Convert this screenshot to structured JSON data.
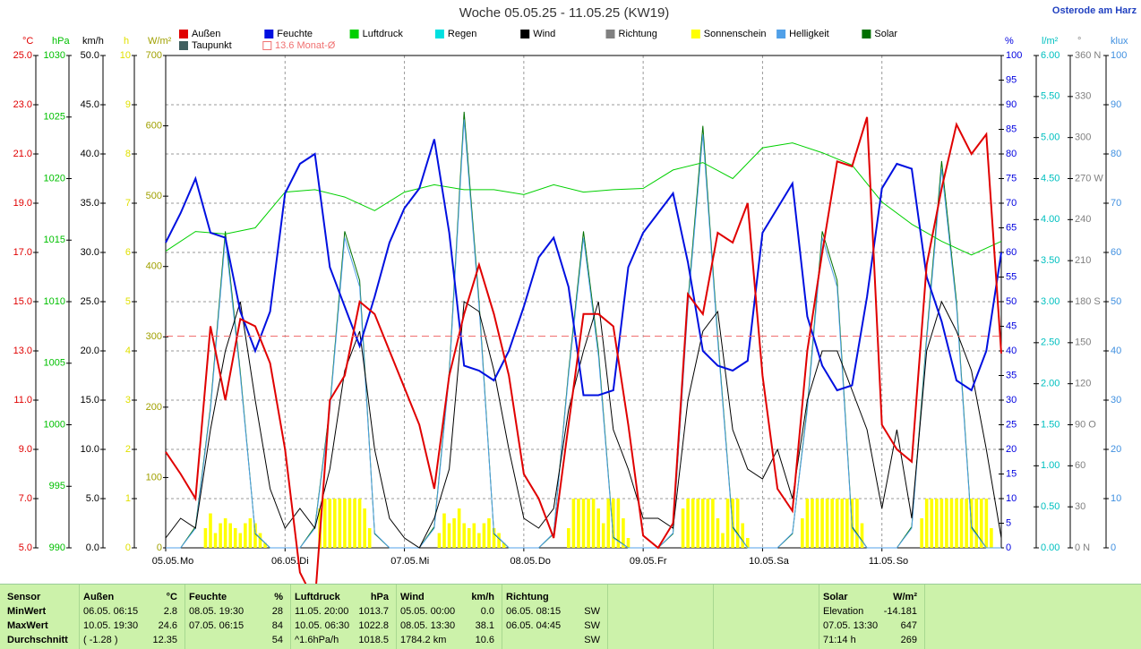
{
  "chart_data": {
    "type": "line",
    "title": "Woche 05.05.25 - 11.05.25 (KW19)",
    "location": "Osterode am Harz",
    "xlim": [
      0,
      168
    ],
    "xticks": [
      {
        "value": 0,
        "label": "05.05."
      },
      {
        "value": 24,
        "label": "06.05."
      },
      {
        "value": 48,
        "label": "07.05."
      },
      {
        "value": 72,
        "label": "08.05."
      },
      {
        "value": 96,
        "label": "09.05."
      },
      {
        "value": 120,
        "label": "10.05."
      },
      {
        "value": 144,
        "label": "11.05."
      }
    ],
    "weekdays": [
      "Mo",
      "Di",
      "Mi",
      "Do",
      "Fr",
      "Sa",
      "So"
    ],
    "axes": [
      {
        "unit": "°C",
        "side": "left",
        "color": "#e00000",
        "grid": true,
        "lim": [
          5,
          25
        ],
        "ticks": [
          {
            "value": 5,
            "label": "5.0"
          },
          {
            "value": 7,
            "label": "7.0"
          },
          {
            "value": 9,
            "label": "9.0"
          },
          {
            "value": 11,
            "label": "11.0"
          },
          {
            "value": 13,
            "label": "13.0"
          },
          {
            "value": 15,
            "label": "15.0"
          },
          {
            "value": 17,
            "label": "17.0"
          },
          {
            "value": 19,
            "label": "19.0"
          },
          {
            "value": 21,
            "label": "21.0"
          },
          {
            "value": 23,
            "label": "23.0"
          },
          {
            "value": 25,
            "label": "25.0"
          }
        ]
      },
      {
        "unit": "hPa",
        "side": "left",
        "color": "#00c000",
        "lim": [
          990,
          1030
        ],
        "ticks": [
          990,
          995,
          1000,
          1005,
          1010,
          1015,
          1020,
          1025,
          1030
        ]
      },
      {
        "unit": "km/h",
        "side": "left",
        "color": "#000000",
        "lim": [
          0,
          50
        ],
        "ticks": [
          {
            "value": 0,
            "label": "0.0"
          },
          {
            "value": 5,
            "label": "5.0"
          },
          {
            "value": 10,
            "label": "10.0"
          },
          {
            "value": 15,
            "label": "15.0"
          },
          {
            "value": 20,
            "label": "20.0"
          },
          {
            "value": 25,
            "label": "25.0"
          },
          {
            "value": 30,
            "label": "30.0"
          },
          {
            "value": 35,
            "label": "35.0"
          },
          {
            "value": 40,
            "label": "40.0"
          },
          {
            "value": 45,
            "label": "45.0"
          },
          {
            "value": 50,
            "label": "50.0"
          }
        ]
      },
      {
        "unit": "h",
        "side": "left",
        "color": "#e0e000",
        "lim": [
          0,
          10
        ],
        "ticks": [
          0,
          1,
          2,
          3,
          4,
          5,
          6,
          7,
          8,
          9,
          10
        ]
      },
      {
        "unit": "W/m²",
        "side": "left",
        "color": "#a0a000",
        "lim": [
          0,
          700
        ],
        "ticks": [
          0,
          100,
          200,
          300,
          400,
          500,
          600,
          700
        ]
      },
      {
        "unit": "%",
        "side": "right",
        "color": "#0000e0",
        "lim": [
          0,
          100
        ],
        "ticks": [
          0,
          5,
          10,
          15,
          20,
          25,
          30,
          35,
          40,
          45,
          50,
          55,
          60,
          65,
          70,
          75,
          80,
          85,
          90,
          95,
          100
        ]
      },
      {
        "unit": "l/m²",
        "side": "right",
        "color": "#00c0c0",
        "lim": [
          0,
          6
        ],
        "ticks": [
          {
            "value": 0,
            "label": "0.00"
          },
          {
            "value": 0.5,
            "label": "0.50"
          },
          {
            "value": 1,
            "label": "1.00"
          },
          {
            "value": 1.5,
            "label": "1.50"
          },
          {
            "value": 2,
            "label": "2.00"
          },
          {
            "value": 2.5,
            "label": "2.50"
          },
          {
            "value": 3,
            "label": "3.00"
          },
          {
            "value": 3.5,
            "label": "3.50"
          },
          {
            "value": 4,
            "label": "4.00"
          },
          {
            "value": 4.5,
            "label": "4.50"
          },
          {
            "value": 5,
            "label": "5.00"
          },
          {
            "value": 5.5,
            "label": "5.50"
          },
          {
            "value": 6,
            "label": "6.00"
          }
        ]
      },
      {
        "unit": "°",
        "side": "right",
        "color": "#808080",
        "lim": [
          0,
          360
        ],
        "ticks": [
          {
            "value": 0,
            "label": "0 N"
          },
          30,
          60,
          {
            "value": 90,
            "label": "90 O"
          },
          120,
          150,
          {
            "value": 180,
            "label": "180 S"
          },
          210,
          240,
          {
            "value": 270,
            "label": "270 W"
          },
          300,
          330,
          {
            "value": 360,
            "label": "360 N"
          }
        ]
      },
      {
        "unit": "klux",
        "side": "right",
        "color": "#4090e0",
        "lim": [
          0,
          100
        ],
        "ticks": [
          0,
          10,
          20,
          30,
          40,
          50,
          60,
          70,
          80,
          90,
          100
        ]
      }
    ],
    "x": [
      0,
      3,
      6,
      9,
      12,
      15,
      18,
      21,
      24,
      27,
      30,
      33,
      36,
      39,
      42,
      45,
      48,
      51,
      54,
      57,
      60,
      63,
      66,
      69,
      72,
      75,
      78,
      81,
      84,
      87,
      90,
      93,
      96,
      99,
      102,
      105,
      108,
      111,
      114,
      117,
      120,
      123,
      126,
      129,
      132,
      135,
      138,
      141,
      144,
      147,
      150,
      153,
      156,
      159,
      162,
      165,
      168
    ],
    "series": [
      {
        "name": "Außen",
        "color": "#e00000",
        "axis": 0,
        "values": [
          8.9,
          8,
          7,
          14,
          11,
          14.3,
          14,
          12.5,
          9,
          4,
          2.8,
          11,
          12,
          15,
          14.5,
          13,
          11.5,
          10,
          7.4,
          12,
          14.5,
          16.5,
          14.5,
          12,
          8,
          7,
          5.4,
          10,
          14.5,
          14.5,
          14,
          10,
          5.5,
          5,
          6,
          15.3,
          14.5,
          17.8,
          17.4,
          19,
          12,
          7.4,
          6.5,
          13,
          17,
          20.7,
          20.5,
          22.5,
          10,
          9,
          8.5,
          16.5,
          19.6,
          22.2,
          21,
          21.8,
          12.9
        ]
      },
      {
        "name": "Feuchte",
        "color": "#0010e0",
        "axis": 5,
        "values": [
          62,
          68,
          75,
          64,
          63,
          48,
          40,
          48,
          72,
          78,
          80,
          57,
          49,
          41,
          51,
          62,
          69,
          73,
          83,
          64,
          37,
          36,
          34,
          40,
          49,
          59,
          63,
          53,
          31,
          31,
          32,
          57,
          64,
          68,
          72,
          58,
          40,
          37,
          36,
          38,
          64,
          69,
          74,
          47,
          37,
          32,
          33,
          51,
          73,
          78,
          77,
          55,
          46,
          34,
          32,
          40,
          60
        ]
      },
      {
        "name": "Luftdruck",
        "color": "#00d000",
        "axis": 1,
        "x": [
          0,
          6,
          12,
          18,
          24,
          30,
          36,
          42,
          48,
          54,
          60,
          66,
          72,
          78,
          84,
          90,
          96,
          102,
          108,
          114,
          120,
          126,
          132,
          138,
          144,
          150,
          156,
          162,
          168
        ],
        "values": [
          1014.1,
          1015.7,
          1015.5,
          1016,
          1018.9,
          1019.1,
          1018.5,
          1017.4,
          1018.9,
          1019.5,
          1019.1,
          1019.1,
          1018.7,
          1019.5,
          1018.9,
          1019.1,
          1019.2,
          1020.7,
          1021.3,
          1020,
          1022.5,
          1022.9,
          1022.1,
          1021.1,
          1018.1,
          1016.3,
          1014.9,
          1013.8,
          1014.9
        ]
      },
      {
        "name": "Wind",
        "color": "#000000",
        "axis": 2,
        "values": [
          1,
          3,
          2,
          12,
          20,
          25,
          15,
          6,
          2,
          4,
          2,
          8,
          18,
          22,
          10,
          3,
          1,
          0,
          3,
          8,
          25,
          24,
          18,
          10,
          3,
          2,
          4,
          14,
          20,
          25,
          12,
          8,
          3,
          3,
          2,
          15,
          22,
          24,
          12,
          8,
          7,
          10,
          5,
          15,
          20,
          20,
          16,
          12,
          4,
          12,
          3,
          20,
          25,
          22,
          18,
          10,
          1
        ]
      },
      {
        "name": "Helligkeit",
        "color": "#50a0e8",
        "axis": 8,
        "values": [
          0,
          0,
          4,
          28,
          63,
          35,
          3,
          0,
          0,
          0,
          4,
          28,
          63,
          53,
          3,
          0,
          0,
          0,
          4,
          35,
          87,
          49,
          3,
          0,
          0,
          0,
          3,
          35,
          63,
          39,
          2,
          0,
          0,
          0,
          3,
          49,
          84,
          42,
          4,
          0,
          0,
          0,
          3,
          28,
          63,
          53,
          4,
          0,
          0,
          0,
          4,
          42,
          77,
          49,
          4,
          0,
          0
        ]
      },
      {
        "name": "Solar",
        "color": "#007000",
        "axis": 4,
        "values": [
          0,
          0,
          30,
          200,
          450,
          250,
          20,
          0,
          0,
          0,
          30,
          200,
          450,
          380,
          20,
          0,
          0,
          0,
          30,
          250,
          620,
          350,
          20,
          0,
          0,
          0,
          20,
          250,
          450,
          280,
          15,
          0,
          0,
          0,
          20,
          350,
          600,
          300,
          30,
          0,
          0,
          0,
          20,
          200,
          450,
          380,
          30,
          0,
          0,
          0,
          30,
          300,
          550,
          350,
          30,
          0,
          0
        ]
      }
    ],
    "sunshine": {
      "name": "Sonnenschein",
      "color": "#ffff00",
      "axis": 3,
      "x": [
        8,
        9,
        10,
        11,
        12,
        13,
        14,
        15,
        16,
        17,
        18,
        19,
        20,
        31,
        32,
        33,
        34,
        35,
        36,
        37,
        38,
        39,
        40,
        41,
        55,
        56,
        57,
        58,
        59,
        60,
        61,
        62,
        63,
        64,
        65,
        66,
        67,
        68,
        81,
        82,
        83,
        84,
        85,
        86,
        87,
        88,
        89,
        90,
        91,
        92,
        93,
        104,
        105,
        106,
        107,
        108,
        109,
        110,
        111,
        112,
        113,
        114,
        115,
        116,
        117,
        128,
        129,
        130,
        131,
        132,
        133,
        134,
        135,
        136,
        137,
        138,
        139,
        140,
        152,
        153,
        154,
        155,
        156,
        157,
        158,
        159,
        160,
        161,
        162,
        163,
        164,
        165,
        166
      ],
      "values": [
        0.4,
        0.7,
        0.3,
        0.5,
        0.6,
        0.5,
        0.4,
        0.3,
        0.5,
        0.6,
        0.5,
        0.3,
        0.1,
        0.8,
        1,
        1,
        1,
        1,
        1,
        1,
        1,
        1,
        0.8,
        0.4,
        0.3,
        0.7,
        0.5,
        0.6,
        0.8,
        0.5,
        0.4,
        0.5,
        0.3,
        0.5,
        0.6,
        0.4,
        0.3,
        0.1,
        0.4,
        1,
        1,
        1,
        1,
        1,
        0.8,
        0.5,
        1,
        1,
        1,
        0.6,
        0.2,
        0.8,
        1,
        1,
        1,
        1,
        1,
        1,
        0.6,
        0.3,
        1,
        1,
        1,
        0.5,
        0.2,
        0.6,
        1,
        1,
        1,
        1,
        1,
        1,
        1,
        1,
        1,
        1,
        1,
        0.5,
        0.6,
        1,
        1,
        1,
        1,
        1,
        1,
        1,
        1,
        1,
        1,
        1,
        1,
        1,
        0.4
      ]
    },
    "legend_only": [
      {
        "name": "Regen",
        "color": "#00e0e0"
      },
      {
        "name": "Richtung",
        "color": "#808080"
      },
      {
        "name": "Taupunkt",
        "color": "#406060"
      }
    ],
    "reference": {
      "value": 13.6,
      "label": "13.6 Monat-Ø",
      "color": "#f07070",
      "axis": 0
    },
    "stats": {
      "header": "Sensor",
      "row_labels": [
        "MinWert",
        "MaxWert",
        "Durchschnitt"
      ],
      "columns": [
        {
          "title": "Außen",
          "unit": "°C",
          "cells": [
            [
              "06.05. 06:15",
              "2.8"
            ],
            [
              "10.05. 19:30",
              "24.6"
            ],
            [
              "( -1.28 )",
              "12.35"
            ]
          ]
        },
        {
          "title": "Feuchte",
          "unit": "%",
          "cells": [
            [
              "08.05. 19:30",
              "28"
            ],
            [
              "07.05. 06:15",
              "84"
            ],
            [
              "54"
            ]
          ]
        },
        {
          "title": "Luftdruck",
          "unit": "hPa",
          "cells": [
            [
              "11.05. 20:00",
              "1013.7"
            ],
            [
              "10.05. 06:30",
              "1022.8"
            ],
            [
              "^1.6hPa/h",
              "1018.5"
            ]
          ]
        },
        {
          "title": "Wind",
          "unit": "km/h",
          "cells": [
            [
              "05.05. 00:00",
              "0.0"
            ],
            [
              "08.05. 13:30",
              "38.1"
            ],
            [
              "1784.2 km",
              "10.6"
            ]
          ]
        },
        {
          "title": "Richtung",
          "cells": [
            [
              "06.05. 08:15",
              "SW"
            ],
            [
              "06.05. 04:45",
              "SW"
            ],
            [
              "SW"
            ]
          ]
        },
        {
          "title": "Solar",
          "unit": "W/m²",
          "cells": [
            [
              "Elevation",
              "-14.181"
            ],
            [
              "07.05. 13:30",
              "647"
            ],
            [
              "71:14 h",
              "269"
            ]
          ]
        }
      ]
    }
  }
}
